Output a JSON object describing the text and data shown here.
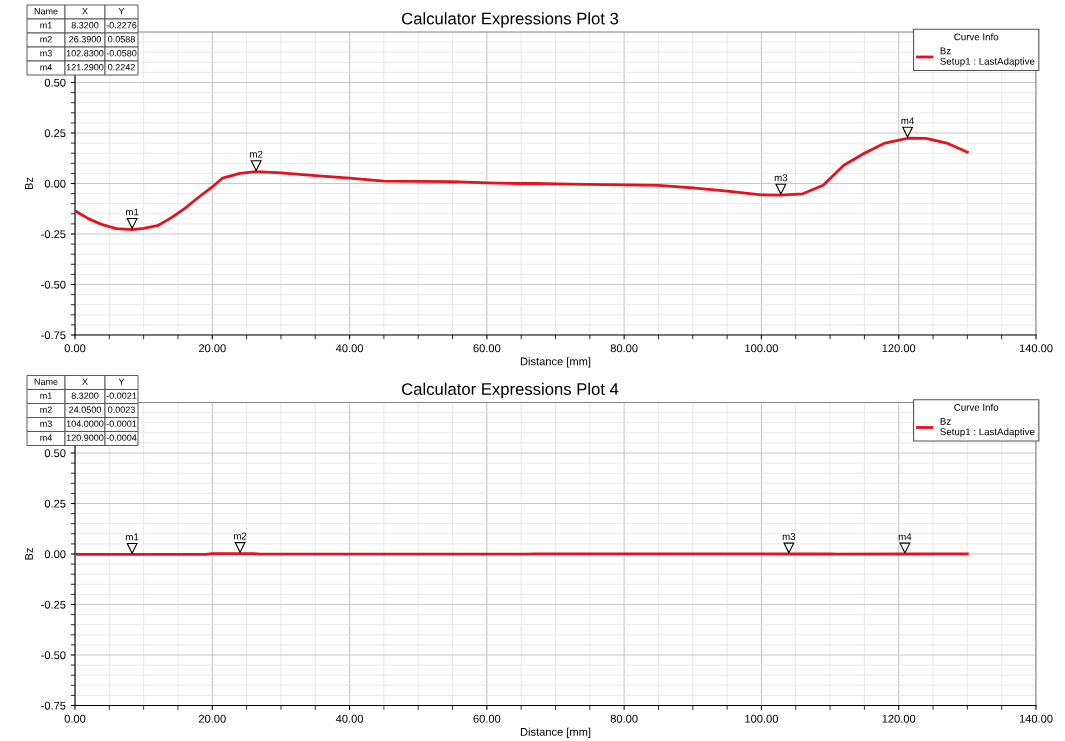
{
  "chart_data": [
    {
      "type": "line",
      "title": "Calculator Expressions Plot 3",
      "xlabel": "Distance [mm]",
      "ylabel": "Bz",
      "legend_title": "Curve Info",
      "legend": "top right",
      "grid": true,
      "marker": "none",
      "line_style": "solid",
      "xlim": [
        0,
        140
      ],
      "xticks": [
        {
          "value": 0,
          "label": "0.00"
        },
        {
          "value": 20,
          "label": "20.00"
        },
        {
          "value": 40,
          "label": "40.00"
        },
        {
          "value": 60,
          "label": "60.00"
        },
        {
          "value": 80,
          "label": "80.00"
        },
        {
          "value": 100,
          "label": "100.00"
        },
        {
          "value": 120,
          "label": "120.00"
        },
        {
          "value": 140,
          "label": "140.00"
        }
      ],
      "ylim": [
        -0.75,
        0.75
      ],
      "yticks": [
        {
          "value": -0.75,
          "label": "-0.75"
        },
        {
          "value": -0.5,
          "label": "-0.50"
        },
        {
          "value": -0.25,
          "label": "-0.25"
        },
        {
          "value": 0,
          "label": "0.00"
        },
        {
          "value": 0.25,
          "label": "0.25"
        },
        {
          "value": 0.5,
          "label": "0.50"
        }
      ],
      "series": [
        {
          "name": "Bz\nSetup1 : LastAdaptive",
          "color": "#e8101c",
          "x": [
            0,
            2,
            4,
            6,
            8.32,
            10,
            12,
            14,
            16,
            18,
            20,
            21.5,
            24,
            26.39,
            30,
            35,
            40,
            45,
            50,
            55,
            60,
            65,
            67,
            72,
            80,
            85,
            90,
            95,
            100,
            102.83,
            106,
            109,
            112,
            115,
            118,
            121.29,
            124,
            127,
            130
          ],
          "values": [
            -0.135,
            -0.175,
            -0.204,
            -0.223,
            -0.228,
            -0.222,
            -0.209,
            -0.17,
            -0.123,
            -0.068,
            -0.017,
            0.027,
            0.05,
            0.059,
            0.053,
            0.039,
            0.027,
            0.012,
            0.01,
            0.009,
            0.003,
            0.0,
            0.0,
            -0.003,
            -0.007,
            -0.009,
            -0.022,
            -0.038,
            -0.056,
            -0.058,
            -0.051,
            -0.009,
            0.09,
            0.15,
            0.2,
            0.224,
            0.223,
            0.2,
            0.155
          ]
        }
      ],
      "annotations": [
        {
          "text": "m1",
          "x": 8.32,
          "y": -0.2276
        },
        {
          "text": "m2",
          "x": 26.39,
          "y": 0.0588
        },
        {
          "text": "m3",
          "x": 102.83,
          "y": -0.058
        },
        {
          "text": "m4",
          "x": 121.29,
          "y": 0.2242
        },
        "Name",
        "X",
        "Y",
        "m1",
        "8.3200",
        "-0.2276",
        "m2",
        "26.3900",
        "0.0588",
        "m3",
        "102.8300",
        "-0.0580",
        "m4",
        "121.2900",
        "0.2242"
      ]
    },
    {
      "type": "line",
      "title": "Calculator Expressions Plot 4",
      "xlabel": "Distance [mm]",
      "ylabel": "Bz",
      "legend_title": "Curve Info",
      "legend": "top right",
      "grid": true,
      "marker": "none",
      "line_style": "solid",
      "xlim": [
        0,
        140
      ],
      "xticks": [
        {
          "value": 0,
          "label": "0.00"
        },
        {
          "value": 20,
          "label": "20.00"
        },
        {
          "value": 40,
          "label": "40.00"
        },
        {
          "value": 60,
          "label": "60.00"
        },
        {
          "value": 80,
          "label": "80.00"
        },
        {
          "value": 100,
          "label": "100.00"
        },
        {
          "value": 120,
          "label": "120.00"
        },
        {
          "value": 140,
          "label": "140.00"
        }
      ],
      "ylim": [
        -0.75,
        0.75
      ],
      "yticks": [
        {
          "value": -0.75,
          "label": "-0.75"
        },
        {
          "value": -0.5,
          "label": "-0.50"
        },
        {
          "value": -0.25,
          "label": "-0.25"
        },
        {
          "value": 0,
          "label": "0.00"
        },
        {
          "value": 0.25,
          "label": "0.25"
        },
        {
          "value": 0.5,
          "label": "0.50"
        }
      ],
      "series": [
        {
          "name": "Bz\nSetup1 : LastAdaptive",
          "color": "#e8101c",
          "x": [
            0,
            8.32,
            19,
            20,
            24.05,
            26,
            27,
            66,
            67,
            104,
            110,
            111,
            120.9,
            127,
            130
          ],
          "values": [
            -0.002,
            -0.002,
            -0.002,
            0.002,
            0.002,
            0.002,
            -0.001,
            -0.001,
            0.001,
            0.0,
            0.001,
            -0.001,
            0.0,
            0.001,
            0.001
          ]
        }
      ],
      "annotations": [
        {
          "text": "m1",
          "x": 8.32,
          "y": -0.0021
        },
        {
          "text": "m2",
          "x": 24.05,
          "y": 0.0023
        },
        {
          "text": "m3",
          "x": 104.0,
          "y": -0.0001
        },
        {
          "text": "m4",
          "x": 120.9,
          "y": -0.0004
        },
        "Name",
        "X",
        "Y",
        "m1",
        "8.3200",
        "-0.0021",
        "m2",
        "24.0500",
        "0.0023",
        "m3",
        "104.0000",
        "-0.0001",
        "m4",
        "120.9000",
        "-0.0004"
      ]
    }
  ]
}
